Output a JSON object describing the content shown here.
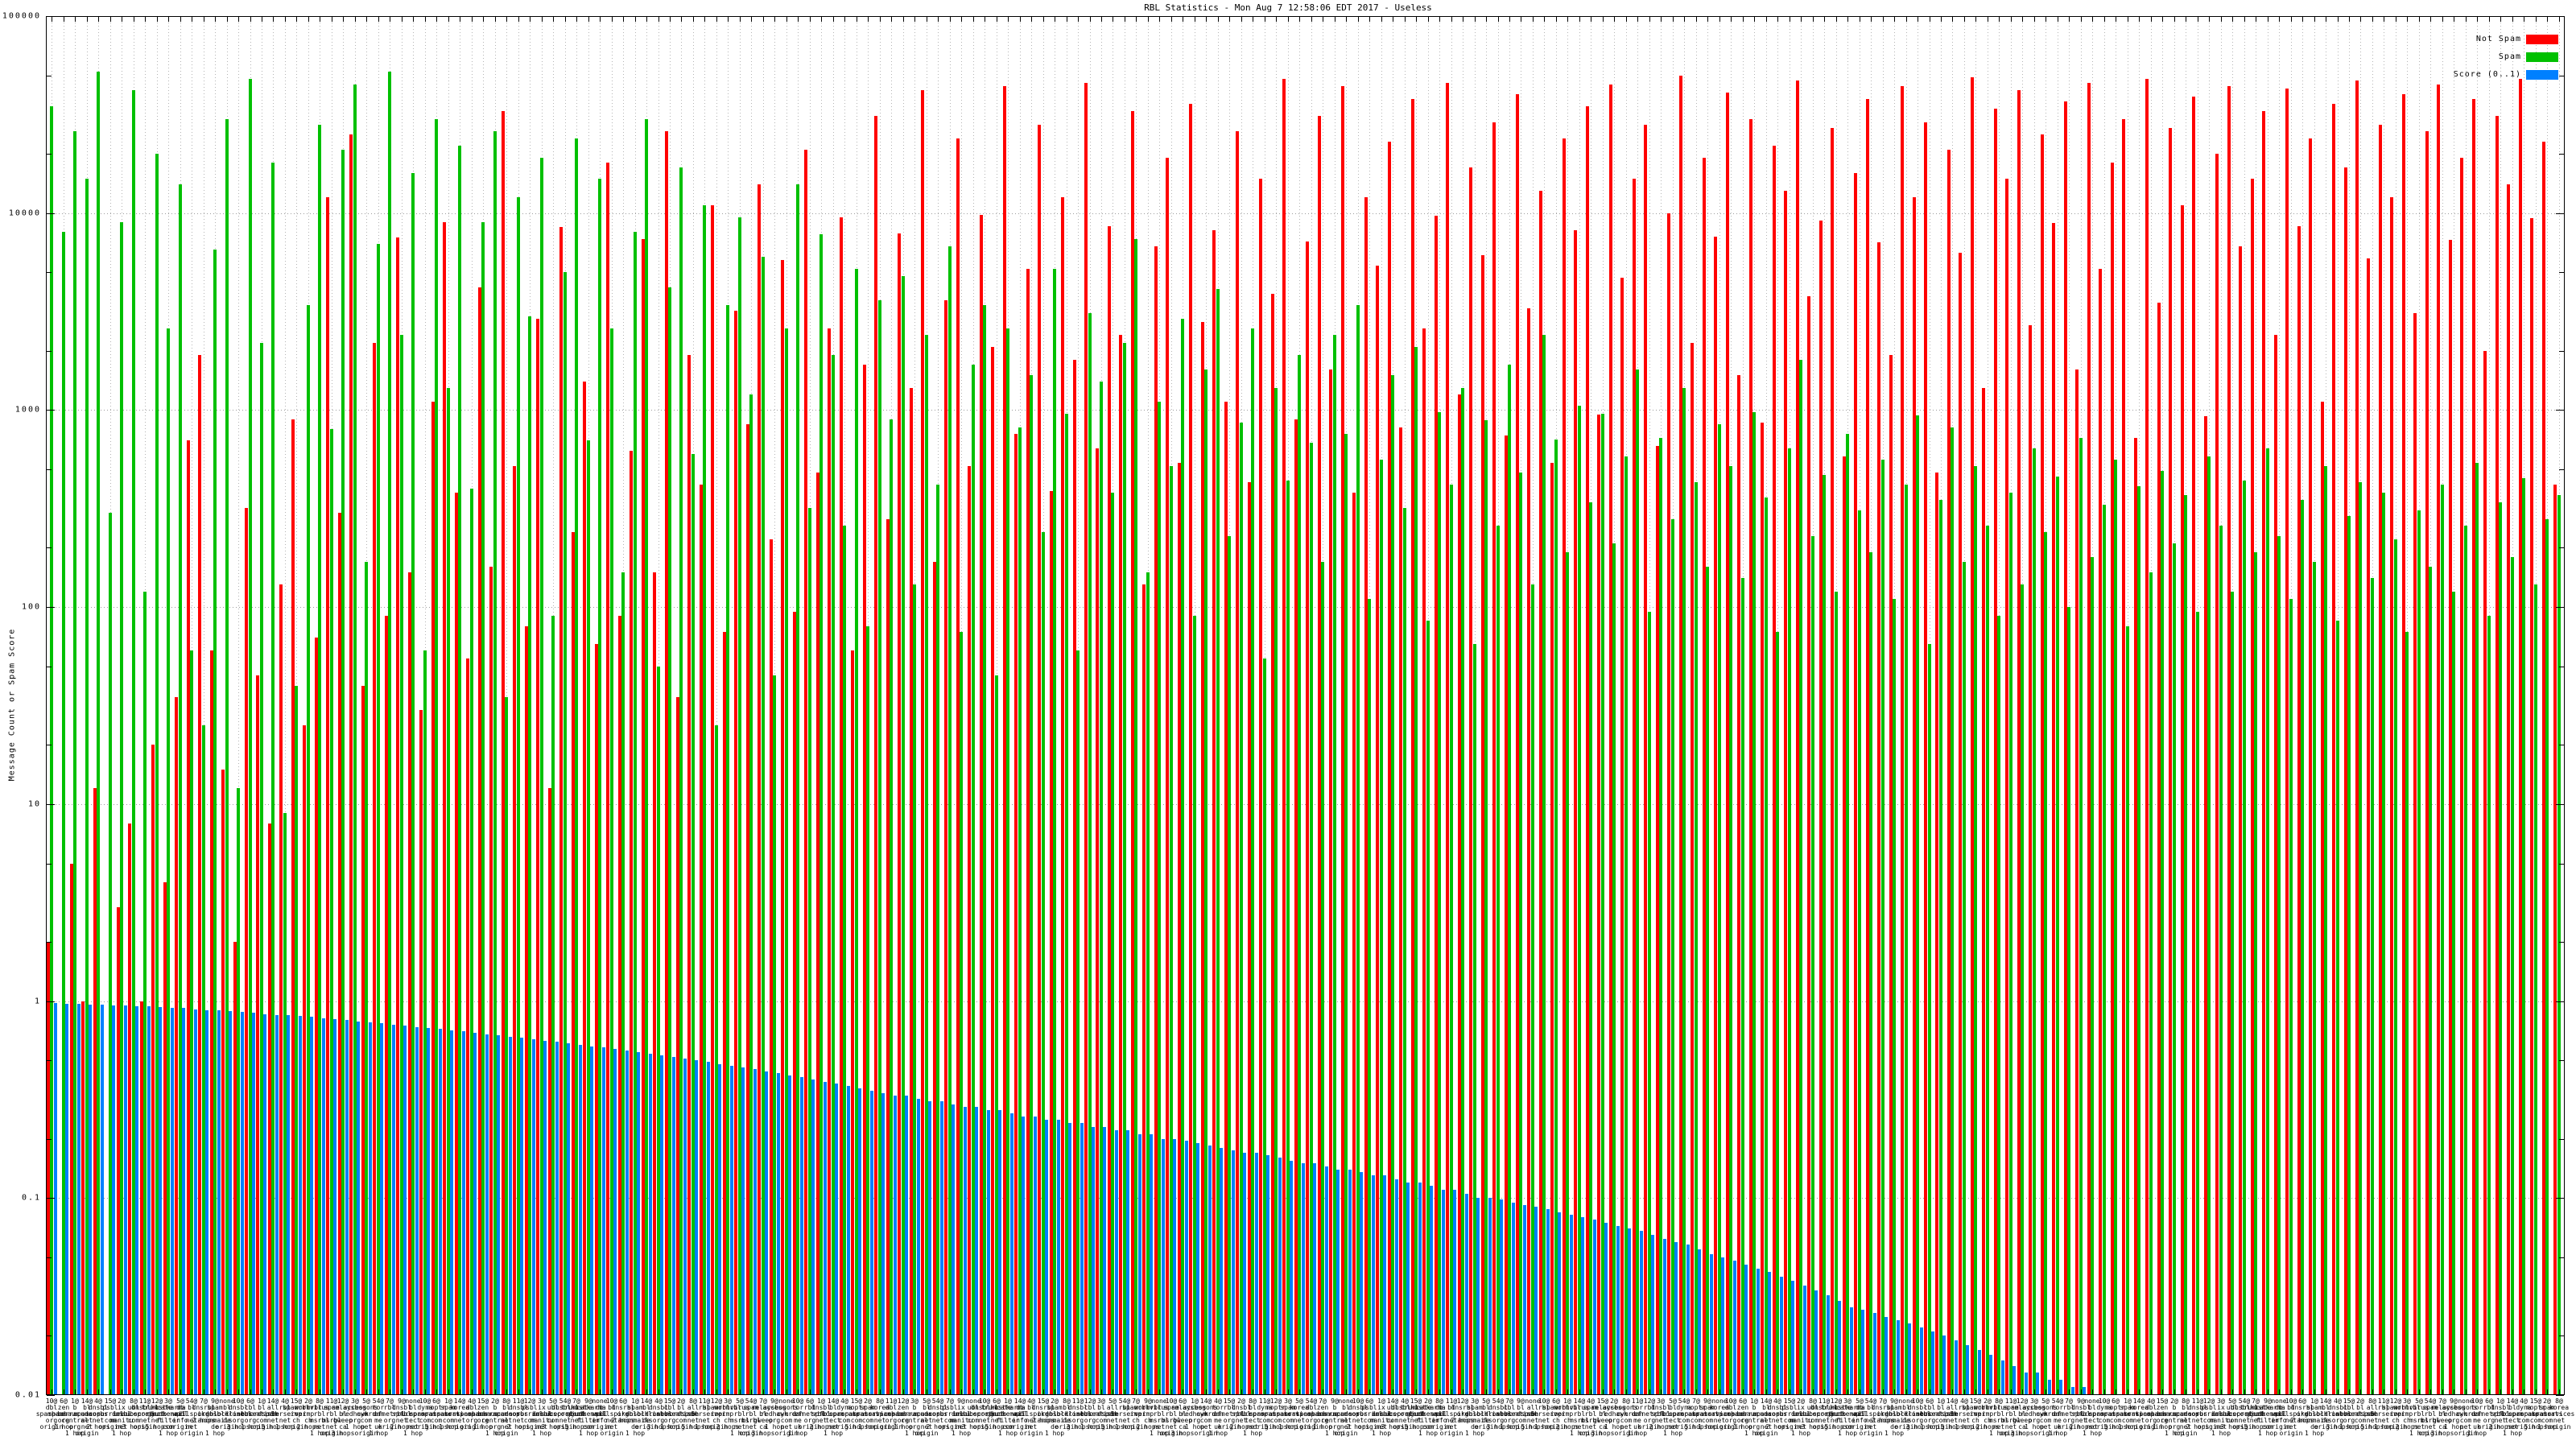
{
  "page_title": "RBL Statistics - Mon Aug  7 12:58:06 EDT 2017 - Useless",
  "chart_data": {
    "type": "bar",
    "title": "RBL Statistics - Mon Aug  7 12:58:06 EDT 2017 - Useless",
    "xlabel": "",
    "ylabel": "Message Count or Spam Score",
    "y_scale": "log",
    "ylim": [
      0.01,
      100000
    ],
    "y_ticks": [
      "100000",
      "10000",
      "1000",
      "100",
      "10",
      "1",
      "0.1",
      "0.01"
    ],
    "grid": "dotted",
    "legend_position": "top-right",
    "colors": {
      "not_spam": "#ff0000",
      "spam": "#00c000",
      "score": "#0080ff",
      "grid": "#9c9c9c",
      "border": "#000000",
      "background": "#ffffff"
    },
    "series": [
      {
        "name": "Not Spam",
        "key": "not_spam"
      },
      {
        "name": "Spam",
        "key": "spam"
      },
      {
        "name": "Score (0..1)",
        "key": "score"
      }
    ],
    "not_spam": [
      2,
      0,
      5,
      1,
      12,
      0,
      3,
      8,
      1,
      20,
      4,
      35,
      700,
      1900,
      60,
      15,
      2,
      320,
      45,
      8,
      130,
      900,
      25,
      70,
      12000,
      300,
      25000,
      40,
      2200,
      90,
      7500,
      150,
      30,
      1100,
      9000,
      380,
      55,
      4200,
      160,
      33000,
      520,
      80,
      2900,
      12,
      8500,
      240,
      1400,
      65,
      18000,
      90,
      620,
      7400,
      150,
      26000,
      35,
      1900,
      420,
      11000,
      75,
      3200,
      850,
      14000,
      220,
      5800,
      95,
      21000,
      480,
      2600,
      9500,
      60,
      1700,
      31000,
      280,
      7900,
      1300,
      42000,
      170,
      3600,
      24000,
      520,
      9800,
      2100,
      44000,
      760,
      5200,
      28000,
      390,
      12000,
      1800,
      46000,
      640,
      8600,
      2400,
      33000,
      130,
      6800,
      19000,
      540,
      36000,
      2800,
      8200,
      1100,
      26000,
      430,
      15000,
      3900,
      48000,
      900,
      7200,
      31000,
      1600,
      44000,
      380,
      12000,
      5400,
      23000,
      820,
      38000,
      2600,
      9700,
      46000,
      1200,
      17000,
      6100,
      29000,
      740,
      40000,
      3300,
      13000,
      540,
      24000,
      8200,
      35000,
      950,
      45000,
      4700,
      15000,
      28000,
      660,
      10000,
      50000,
      2200,
      19000,
      7600,
      41000,
      1500,
      30000,
      860,
      22000,
      13000,
      47000,
      3800,
      9200,
      27000,
      580,
      16000,
      38000,
      7100,
      1900,
      44000,
      12000,
      29000,
      480,
      21000,
      6300,
      49000,
      1300,
      34000,
      15000,
      42000,
      2700,
      25000,
      8900,
      37000,
      1600,
      46000,
      5200,
      18000,
      30000,
      720,
      48000,
      3500,
      27000,
      11000,
      39000,
      930,
      20000,
      44000,
      6800,
      15000,
      33000,
      2400,
      43000,
      8600,
      24000,
      1100,
      36000,
      17000,
      47000,
      5900,
      28000,
      12000,
      40000,
      3100,
      26000,
      45000,
      7300,
      19000,
      38000,
      2000,
      31000,
      14000,
      48000,
      9400,
      23000,
      420
    ],
    "spam": [
      35000,
      8000,
      26000,
      15000,
      52000,
      300,
      9000,
      42000,
      120,
      20000,
      2600,
      14000,
      60,
      25,
      6500,
      30000,
      12,
      48000,
      2200,
      18000,
      9,
      40,
      3400,
      28000,
      800,
      21000,
      45000,
      170,
      7000,
      52000,
      2400,
      16000,
      60,
      30000,
      1300,
      22000,
      400,
      9000,
      26000,
      35,
      12000,
      3000,
      19000,
      90,
      5000,
      24000,
      700,
      15000,
      2600,
      150,
      8000,
      30000,
      50,
      4200,
      17000,
      600,
      11000,
      25,
      3400,
      9500,
      1200,
      6000,
      45,
      2600,
      14000,
      320,
      7800,
      1900,
      260,
      5200,
      80,
      3600,
      900,
      4800,
      130,
      2400,
      420,
      6800,
      75,
      1700,
      3400,
      45,
      2600,
      820,
      1500,
      240,
      5200,
      960,
      60,
      3100,
      1400,
      380,
      2200,
      7400,
      150,
      1100,
      520,
      2900,
      90,
      1600,
      4100,
      230,
      860,
      2600,
      55,
      1300,
      440,
      1900,
      680,
      170,
      2400,
      760,
      3400,
      110,
      560,
      1500,
      320,
      2100,
      85,
      980,
      420,
      1300,
      65,
      890,
      260,
      1700,
      480,
      130,
      2400,
      710,
      190,
      1050,
      340,
      960,
      210,
      580,
      1600,
      95,
      720,
      280,
      1300,
      430,
      160,
      850,
      520,
      140,
      980,
      360,
      75,
      640,
      1800,
      230,
      470,
      120,
      760,
      310,
      190,
      560,
      110,
      420,
      940,
      65,
      350,
      820,
      170,
      520,
      260,
      90,
      380,
      130,
      640,
      240,
      460,
      100,
      720,
      180,
      330,
      560,
      80,
      410,
      150,
      490,
      210,
      370,
      95,
      580,
      260,
      120,
      440,
      190,
      640,
      230,
      110,
      350,
      170,
      520,
      85,
      290,
      430,
      140,
      380,
      220,
      75,
      310,
      160,
      420,
      120,
      260,
      540,
      90,
      340,
      180,
      450,
      130,
      280,
      370
    ],
    "score": [
      0.98,
      0.97,
      0.97,
      0.96,
      0.96,
      0.95,
      0.95,
      0.94,
      0.94,
      0.93,
      0.92,
      0.92,
      0.91,
      0.9,
      0.9,
      0.89,
      0.88,
      0.87,
      0.86,
      0.85,
      0.85,
      0.84,
      0.83,
      0.82,
      0.81,
      0.8,
      0.79,
      0.78,
      0.77,
      0.76,
      0.75,
      0.74,
      0.73,
      0.72,
      0.71,
      0.7,
      0.69,
      0.68,
      0.67,
      0.66,
      0.65,
      0.64,
      0.63,
      0.62,
      0.61,
      0.6,
      0.59,
      0.58,
      0.57,
      0.56,
      0.55,
      0.54,
      0.53,
      0.52,
      0.51,
      0.5,
      0.49,
      0.48,
      0.47,
      0.46,
      0.45,
      0.44,
      0.43,
      0.42,
      0.41,
      0.4,
      0.39,
      0.38,
      0.37,
      0.36,
      0.35,
      0.34,
      0.33,
      0.33,
      0.32,
      0.31,
      0.31,
      0.3,
      0.29,
      0.29,
      0.28,
      0.28,
      0.27,
      0.26,
      0.26,
      0.25,
      0.25,
      0.24,
      0.24,
      0.23,
      0.23,
      0.22,
      0.22,
      0.21,
      0.21,
      0.2,
      0.2,
      0.195,
      0.19,
      0.185,
      0.18,
      0.175,
      0.17,
      0.17,
      0.165,
      0.16,
      0.155,
      0.15,
      0.15,
      0.145,
      0.14,
      0.14,
      0.135,
      0.13,
      0.13,
      0.125,
      0.12,
      0.12,
      0.115,
      0.11,
      0.11,
      0.105,
      0.1,
      0.1,
      0.098,
      0.095,
      0.092,
      0.09,
      0.088,
      0.085,
      0.082,
      0.08,
      0.078,
      0.075,
      0.072,
      0.07,
      0.068,
      0.065,
      0.062,
      0.06,
      0.058,
      0.055,
      0.052,
      0.05,
      0.048,
      0.046,
      0.044,
      0.042,
      0.04,
      0.038,
      0.036,
      0.034,
      0.032,
      0.03,
      0.028,
      0.027,
      0.026,
      0.025,
      0.024,
      0.023,
      0.022,
      0.021,
      0.02,
      0.019,
      0.018,
      0.017,
      0.016,
      0.015,
      0.014,
      0.013,
      0.013,
      0.012,
      0.012,
      0.011,
      0.011,
      0.01,
      0.01,
      0.01,
      0.01,
      0.01,
      0.01,
      0.01,
      0.01,
      0.01,
      0.01,
      0.01,
      0.01,
      0.01,
      0.01,
      0.01,
      0.01,
      0.01,
      0.01,
      0.01,
      0.01,
      0.01,
      0.01,
      0.01,
      0.01,
      0.01,
      0.01,
      0.01,
      0.01,
      0.01,
      0.01,
      0.01,
      0.01,
      0.01,
      0.01,
      0.01,
      0.01,
      0.01,
      0.01,
      0.01,
      0.01,
      0.01
    ],
    "x_label_counts_pool": [
      "2@",
      "14@",
      "10@",
      "7@",
      "3@",
      "8@",
      "4@",
      "6@",
      "9@",
      "5@",
      "11@",
      "15@",
      "1@",
      "none",
      "54@",
      "12@"
    ],
    "x_label_pool": [
      "dbl\nspamhaus\norg\norigin",
      "zen\nspamhaus\norg\n1 hop",
      "b\nbarracuda\ncentral\norg\n1 hop",
      "bl\nspamcop\nnet\nnet\norigin",
      "dnsbl\nsorbs\nnet\n2 hops",
      "psbl\nsurriel\ncom\norigin",
      "ix\ndnsbl\nmanitu\nnet\n1 hop",
      "ubl\nunsubscore\ncom\n3 hops",
      "dnsbl-1\nuceprotect\nnet\norigin",
      "truncate\ngbudb\nnet\n5 hops",
      "hostkarma\njunkemail\nfilter\ncom\n1 hop",
      "db\nwpbl\ninfo\norigin",
      "bl\nmailspike\nnet\nnet\norigin",
      "dnsrbl\norg\n2 hops",
      "spam\ndnsbl\nanonmails\nde\n1 hop",
      "bl\nblocklist\nde\norigin",
      "dnsbl\ndronebl\norg\n3 hops",
      "cbl\nabuseat\norg\n1 hop",
      "bl\nnordspam\ncom\norigin",
      "all\ns5h\nnet\n5 hops",
      "rbl\ninterserver\nnet\n1 hop",
      "spamrbl\nimp\nch\norigin",
      "wormrbl\nimp\nch\n2 hops",
      "virus\nrbl\nmsrbl\nnet\n1 hop",
      "spam\nrbl\nmsrbl\nnet\norigin",
      "relays\nbl\ngweep\nca\n3 hops",
      "access\nredhawk\norg\n1 hop",
      "bogons\ncymru\ncom\nnet\norigin",
      "tor\ndan\nme\nuk\n1 hop",
      "rbl\nefnetrbl\norg\norigin",
      "dnsbl\nspfbl\nnet\n2 hops",
      "bl\nucepro\ntect\nnet\n1 hop",
      "dyna\nspamrats\ncom\norigin",
      "noptr\nspamrats\ncom\n5 hops",
      "spam\nspamrats\ncom\n1 hop",
      "korea\nservices\nnet\norigin"
    ]
  }
}
